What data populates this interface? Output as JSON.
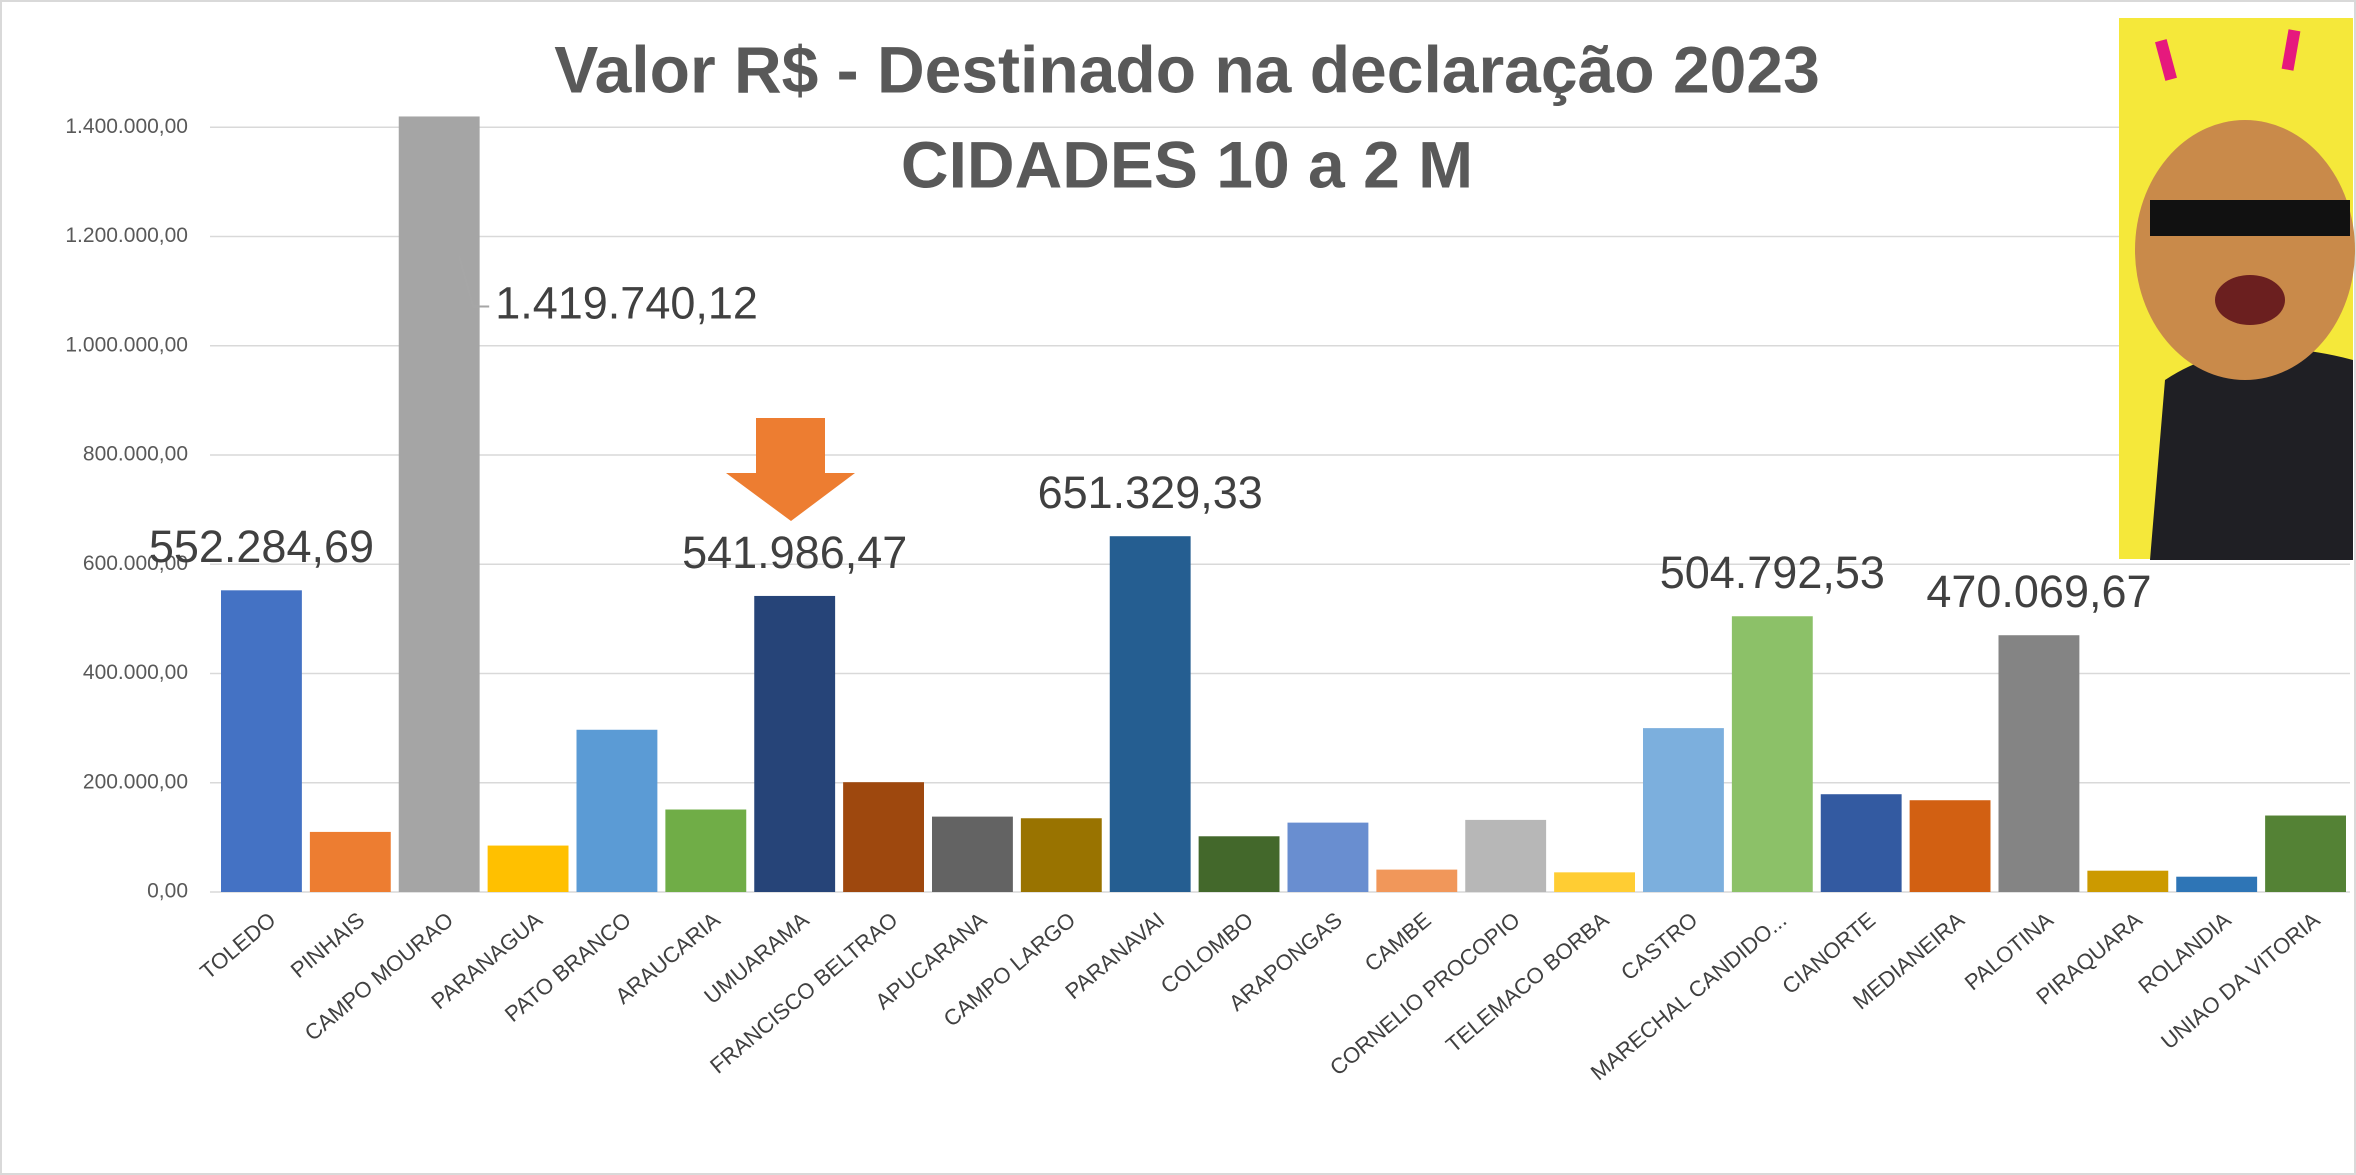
{
  "chart_data": {
    "type": "bar",
    "title": "Valor R$ - Destinado na declaração 2023",
    "subtitle": "CIDADES 10 a 2 M",
    "categories": [
      "TOLEDO",
      "PINHAIS",
      "CAMPO MOURAO",
      "PARANAGUA",
      "PATO BRANCO",
      "ARAUCARIA",
      "UMUARAMA",
      "FRANCISCO BELTRAO",
      "APUCARANA",
      "CAMPO LARGO",
      "PARANAVAI",
      "COLOMBO",
      "ARAPONGAS",
      "CAMBE",
      "CORNELIO PROCOPIO",
      "TELEMACO BORBA",
      "CASTRO",
      "MARECHAL CANDIDO...",
      "CIANORTE",
      "MEDIANEIRA",
      "PALOTINA",
      "PIRAQUARA",
      "ROLANDIA",
      "UNIAO DA VITORIA"
    ],
    "values": [
      552284.69,
      110000,
      1419740.12,
      85000,
      297000,
      151000,
      541986.47,
      201000,
      138000,
      135000,
      651329.33,
      102000,
      127000,
      41000,
      132000,
      36000,
      300000,
      504792.53,
      179000,
      168000,
      470069.67,
      39000,
      28000,
      140000
    ],
    "value_labels": [
      "552.284,69",
      null,
      "1.419.740,12",
      null,
      null,
      null,
      "541.986,47",
      null,
      null,
      null,
      "651.329,33",
      null,
      null,
      null,
      null,
      null,
      null,
      "504.792,53",
      null,
      null,
      "470.069,67",
      null,
      null,
      null
    ],
    "colors": [
      "#4472C4",
      "#ED7D31",
      "#A5A5A5",
      "#FFC000",
      "#5B9BD5",
      "#70AD47",
      "#264478",
      "#9E480E",
      "#636363",
      "#997300",
      "#255E91",
      "#43682B",
      "#698ED0",
      "#F1975A",
      "#B7B7B7",
      "#FFCD33",
      "#7CAFDD",
      "#8CC168",
      "#335AA1",
      "#D26012",
      "#848484",
      "#CC9A00",
      "#2E75B6",
      "#548235"
    ],
    "ylim": [
      0,
      1600000
    ],
    "yticks": [
      {
        "value": 0,
        "label": "0,00"
      },
      {
        "value": 200000,
        "label": "200.000,00"
      },
      {
        "value": 400000,
        "label": "400.000,00"
      },
      {
        "value": 600000,
        "label": "600.000,00"
      },
      {
        "value": 800000,
        "label": "800.000,00"
      },
      {
        "value": 1000000,
        "label": "1.000.000,00"
      },
      {
        "value": 1200000,
        "label": "1.200.000,00"
      },
      {
        "value": 1400000,
        "label": "1.400.000,00"
      }
    ],
    "grid": true
  }
}
